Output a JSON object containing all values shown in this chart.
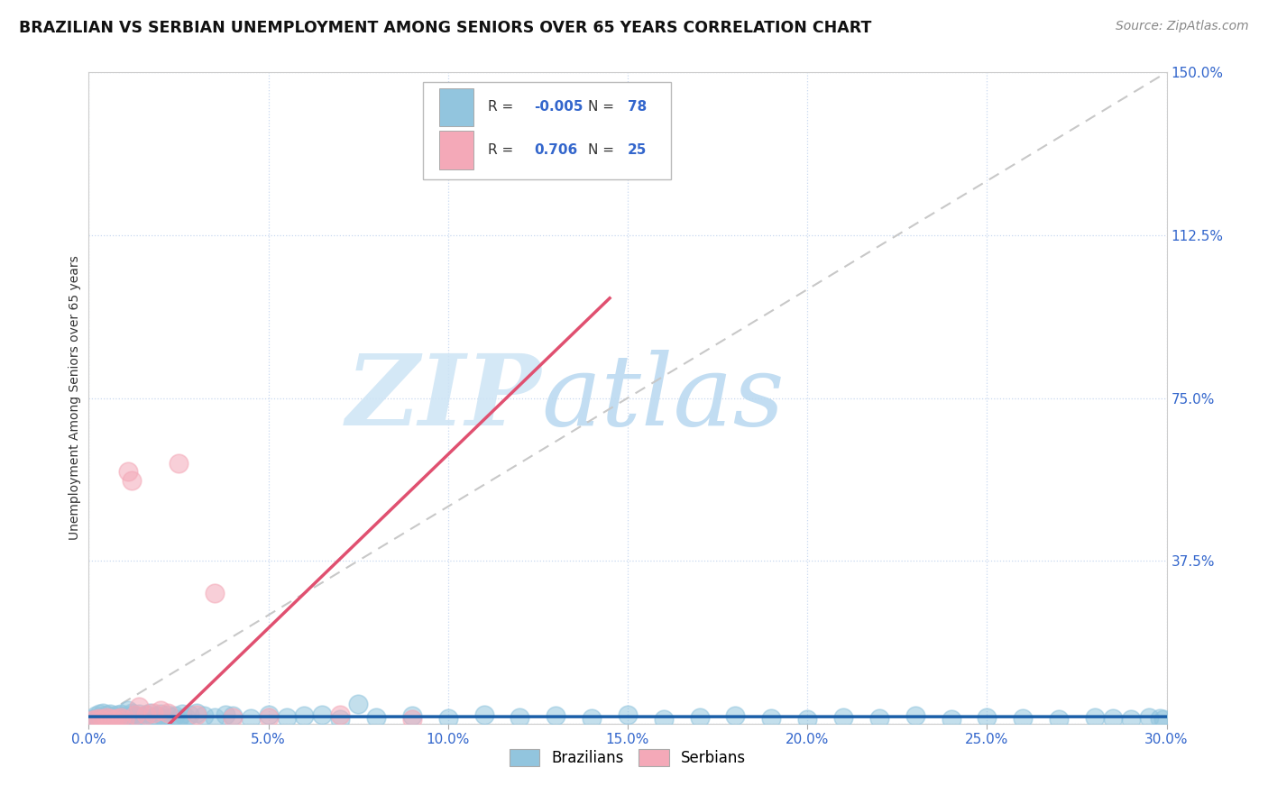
{
  "title": "BRAZILIAN VS SERBIAN UNEMPLOYMENT AMONG SENIORS OVER 65 YEARS CORRELATION CHART",
  "source": "Source: ZipAtlas.com",
  "ylabel": "Unemployment Among Seniors over 65 years",
  "xlim": [
    0.0,
    0.3
  ],
  "ylim": [
    0.0,
    1.5
  ],
  "legend_r1": "-0.005",
  "legend_n1": "78",
  "legend_r2": "0.706",
  "legend_n2": "25",
  "brazil_color": "#92c5de",
  "serbia_color": "#f4a9b8",
  "brazil_trend_color": "#1a5ea8",
  "serbia_trend_color": "#e05070",
  "watermark_zip": "ZIP",
  "watermark_atlas": "atlas",
  "brazil_points_x": [
    0.001,
    0.002,
    0.002,
    0.003,
    0.003,
    0.004,
    0.004,
    0.005,
    0.005,
    0.006,
    0.006,
    0.007,
    0.007,
    0.008,
    0.008,
    0.009,
    0.009,
    0.01,
    0.01,
    0.011,
    0.011,
    0.012,
    0.012,
    0.013,
    0.013,
    0.014,
    0.015,
    0.016,
    0.017,
    0.018,
    0.019,
    0.02,
    0.021,
    0.022,
    0.023,
    0.024,
    0.025,
    0.026,
    0.027,
    0.028,
    0.03,
    0.032,
    0.035,
    0.038,
    0.04,
    0.045,
    0.05,
    0.055,
    0.06,
    0.065,
    0.07,
    0.075,
    0.08,
    0.09,
    0.1,
    0.11,
    0.12,
    0.13,
    0.14,
    0.15,
    0.16,
    0.17,
    0.18,
    0.19,
    0.2,
    0.21,
    0.22,
    0.23,
    0.24,
    0.25,
    0.26,
    0.27,
    0.28,
    0.285,
    0.29,
    0.295,
    0.298,
    0.299
  ],
  "brazil_points_y": [
    0.01,
    0.012,
    0.018,
    0.015,
    0.022,
    0.01,
    0.025,
    0.012,
    0.02,
    0.015,
    0.022,
    0.01,
    0.018,
    0.012,
    0.02,
    0.015,
    0.022,
    0.01,
    0.018,
    0.012,
    0.03,
    0.02,
    0.025,
    0.015,
    0.018,
    0.022,
    0.012,
    0.02,
    0.025,
    0.015,
    0.018,
    0.022,
    0.012,
    0.02,
    0.015,
    0.018,
    0.01,
    0.022,
    0.015,
    0.02,
    0.025,
    0.018,
    0.015,
    0.02,
    0.018,
    0.012,
    0.02,
    0.015,
    0.018,
    0.02,
    0.01,
    0.045,
    0.015,
    0.018,
    0.012,
    0.02,
    0.015,
    0.018,
    0.012,
    0.02,
    0.01,
    0.015,
    0.018,
    0.012,
    0.01,
    0.015,
    0.012,
    0.018,
    0.01,
    0.015,
    0.012,
    0.01,
    0.015,
    0.012,
    0.01,
    0.015,
    0.012,
    0.01
  ],
  "serbia_points_x": [
    0.001,
    0.002,
    0.003,
    0.004,
    0.005,
    0.006,
    0.007,
    0.008,
    0.009,
    0.01,
    0.011,
    0.012,
    0.013,
    0.014,
    0.016,
    0.018,
    0.02,
    0.022,
    0.025,
    0.03,
    0.035,
    0.04,
    0.05,
    0.07,
    0.09
  ],
  "serbia_points_y": [
    0.008,
    0.01,
    0.012,
    0.01,
    0.015,
    0.012,
    0.01,
    0.012,
    0.015,
    0.01,
    0.58,
    0.56,
    0.02,
    0.04,
    0.02,
    0.025,
    0.03,
    0.025,
    0.6,
    0.02,
    0.3,
    0.015,
    0.015,
    0.02,
    0.01
  ],
  "right_yticks": [
    0.0,
    0.375,
    0.75,
    1.125,
    1.5
  ],
  "right_yticklabels": [
    "",
    "37.5%",
    "75.0%",
    "112.5%",
    "150.0%"
  ],
  "right_ytick_extra_val": 1.5,
  "right_ytick_extra_label": "150.0%",
  "xticks": [
    0.0,
    0.05,
    0.1,
    0.15,
    0.2,
    0.25,
    0.3
  ],
  "xticklabels": [
    "0.0%",
    "5.0%",
    "10.0%",
    "15.0%",
    "20.0%",
    "25.0%",
    "30.0%"
  ]
}
